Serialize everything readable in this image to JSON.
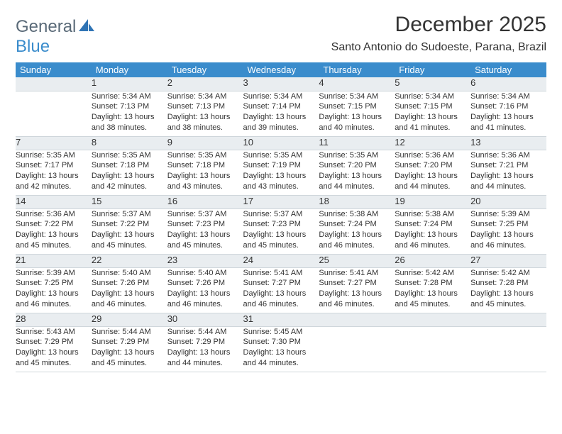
{
  "logo": {
    "word1": "General",
    "word2": "Blue"
  },
  "title": "December 2025",
  "location": "Santo Antonio do Sudoeste, Parana, Brazil",
  "colors": {
    "header_bg": "#3a8ccc",
    "header_fg": "#ffffff",
    "dayrow_bg": "#e9edf0",
    "border": "#cfd6db",
    "logo_gray": "#5a6a78",
    "logo_blue": "#3a8ccc"
  },
  "weekdays": [
    "Sunday",
    "Monday",
    "Tuesday",
    "Wednesday",
    "Thursday",
    "Friday",
    "Saturday"
  ],
  "weeks": [
    [
      null,
      {
        "n": "1",
        "sr": "5:34 AM",
        "ss": "7:13 PM",
        "dl": "13 hours and 38 minutes."
      },
      {
        "n": "2",
        "sr": "5:34 AM",
        "ss": "7:13 PM",
        "dl": "13 hours and 38 minutes."
      },
      {
        "n": "3",
        "sr": "5:34 AM",
        "ss": "7:14 PM",
        "dl": "13 hours and 39 minutes."
      },
      {
        "n": "4",
        "sr": "5:34 AM",
        "ss": "7:15 PM",
        "dl": "13 hours and 40 minutes."
      },
      {
        "n": "5",
        "sr": "5:34 AM",
        "ss": "7:15 PM",
        "dl": "13 hours and 41 minutes."
      },
      {
        "n": "6",
        "sr": "5:34 AM",
        "ss": "7:16 PM",
        "dl": "13 hours and 41 minutes."
      }
    ],
    [
      {
        "n": "7",
        "sr": "5:35 AM",
        "ss": "7:17 PM",
        "dl": "13 hours and 42 minutes."
      },
      {
        "n": "8",
        "sr": "5:35 AM",
        "ss": "7:18 PM",
        "dl": "13 hours and 42 minutes."
      },
      {
        "n": "9",
        "sr": "5:35 AM",
        "ss": "7:18 PM",
        "dl": "13 hours and 43 minutes."
      },
      {
        "n": "10",
        "sr": "5:35 AM",
        "ss": "7:19 PM",
        "dl": "13 hours and 43 minutes."
      },
      {
        "n": "11",
        "sr": "5:35 AM",
        "ss": "7:20 PM",
        "dl": "13 hours and 44 minutes."
      },
      {
        "n": "12",
        "sr": "5:36 AM",
        "ss": "7:20 PM",
        "dl": "13 hours and 44 minutes."
      },
      {
        "n": "13",
        "sr": "5:36 AM",
        "ss": "7:21 PM",
        "dl": "13 hours and 44 minutes."
      }
    ],
    [
      {
        "n": "14",
        "sr": "5:36 AM",
        "ss": "7:22 PM",
        "dl": "13 hours and 45 minutes."
      },
      {
        "n": "15",
        "sr": "5:37 AM",
        "ss": "7:22 PM",
        "dl": "13 hours and 45 minutes."
      },
      {
        "n": "16",
        "sr": "5:37 AM",
        "ss": "7:23 PM",
        "dl": "13 hours and 45 minutes."
      },
      {
        "n": "17",
        "sr": "5:37 AM",
        "ss": "7:23 PM",
        "dl": "13 hours and 45 minutes."
      },
      {
        "n": "18",
        "sr": "5:38 AM",
        "ss": "7:24 PM",
        "dl": "13 hours and 46 minutes."
      },
      {
        "n": "19",
        "sr": "5:38 AM",
        "ss": "7:24 PM",
        "dl": "13 hours and 46 minutes."
      },
      {
        "n": "20",
        "sr": "5:39 AM",
        "ss": "7:25 PM",
        "dl": "13 hours and 46 minutes."
      }
    ],
    [
      {
        "n": "21",
        "sr": "5:39 AM",
        "ss": "7:25 PM",
        "dl": "13 hours and 46 minutes."
      },
      {
        "n": "22",
        "sr": "5:40 AM",
        "ss": "7:26 PM",
        "dl": "13 hours and 46 minutes."
      },
      {
        "n": "23",
        "sr": "5:40 AM",
        "ss": "7:26 PM",
        "dl": "13 hours and 46 minutes."
      },
      {
        "n": "24",
        "sr": "5:41 AM",
        "ss": "7:27 PM",
        "dl": "13 hours and 46 minutes."
      },
      {
        "n": "25",
        "sr": "5:41 AM",
        "ss": "7:27 PM",
        "dl": "13 hours and 46 minutes."
      },
      {
        "n": "26",
        "sr": "5:42 AM",
        "ss": "7:28 PM",
        "dl": "13 hours and 45 minutes."
      },
      {
        "n": "27",
        "sr": "5:42 AM",
        "ss": "7:28 PM",
        "dl": "13 hours and 45 minutes."
      }
    ],
    [
      {
        "n": "28",
        "sr": "5:43 AM",
        "ss": "7:29 PM",
        "dl": "13 hours and 45 minutes."
      },
      {
        "n": "29",
        "sr": "5:44 AM",
        "ss": "7:29 PM",
        "dl": "13 hours and 45 minutes."
      },
      {
        "n": "30",
        "sr": "5:44 AM",
        "ss": "7:29 PM",
        "dl": "13 hours and 44 minutes."
      },
      {
        "n": "31",
        "sr": "5:45 AM",
        "ss": "7:30 PM",
        "dl": "13 hours and 44 minutes."
      },
      null,
      null,
      null
    ]
  ],
  "labels": {
    "sunrise": "Sunrise: ",
    "sunset": "Sunset: ",
    "daylight": "Daylight: "
  }
}
